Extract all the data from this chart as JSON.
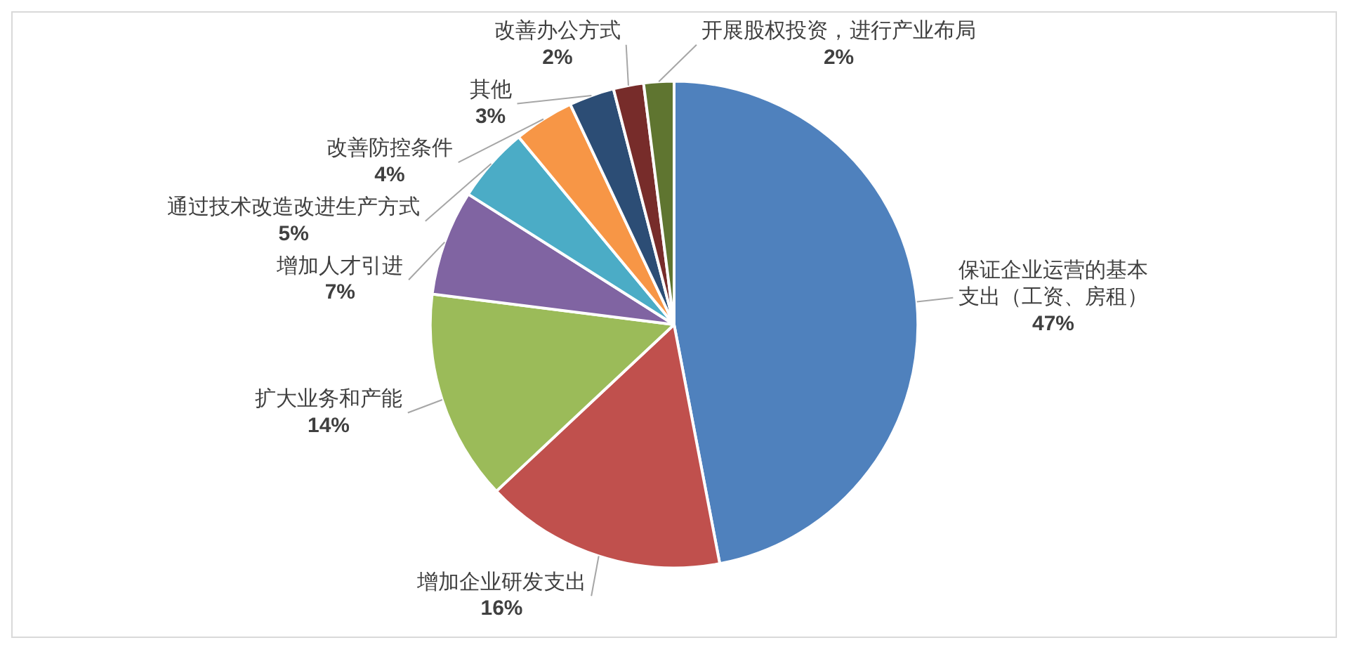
{
  "chart_data": {
    "type": "pie",
    "categories": [
      "保证企业运营的基本支出（工资、房租）",
      "增加企业研发支出",
      "扩大业务和产能",
      "增加人才引进",
      "通过技术改造改进生产方式",
      "改善防控条件",
      "其他",
      "改善办公方式",
      "开展股权投资，进行产业布局"
    ],
    "values": [
      47,
      16,
      14,
      7,
      5,
      4,
      3,
      2,
      2
    ],
    "value_labels": [
      "47%",
      "16%",
      "14%",
      "7%",
      "5%",
      "4%",
      "3%",
      "2%",
      "2%"
    ],
    "colors": [
      "#4f81bd",
      "#c0504d",
      "#9bbb59",
      "#8064a2",
      "#4bacc6",
      "#f79646",
      "#2c4d75",
      "#772c2a",
      "#5f7530"
    ],
    "legend": false
  }
}
